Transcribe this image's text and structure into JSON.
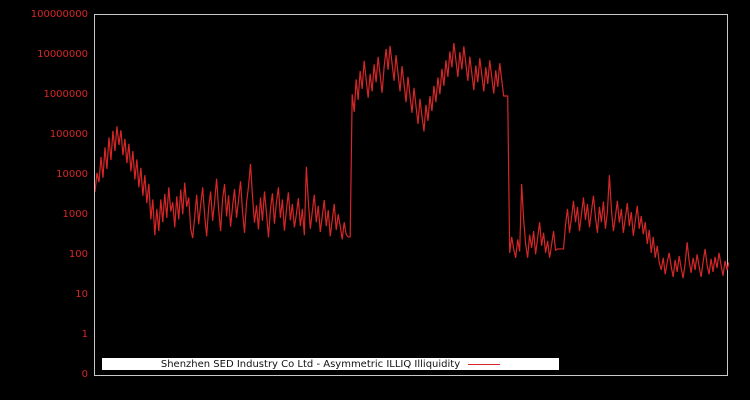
{
  "chart_data": {
    "type": "line",
    "title": "",
    "grid": false,
    "background_color": "#000000",
    "frame_color": "#c9c9c9",
    "legend": {
      "label": "Shenzhen SED Industry Co Ltd - Asymmetric ILLIQ Illiquidity",
      "position": "lower center",
      "background": "#ffffff",
      "text_color": "#111111"
    },
    "x_axis": {
      "label": "",
      "tick_labels": [],
      "note": "time axis, no visible tick labels"
    },
    "y_axis": {
      "label": "",
      "scale": "symlog",
      "tick_labels": [
        "100000000",
        "10000000",
        "1000000",
        "100000",
        "10000",
        "1000",
        "100",
        "10",
        "1",
        "0"
      ],
      "tick_values": [
        100000000,
        10000000,
        1000000,
        100000,
        10000,
        1000,
        100,
        10,
        1,
        0
      ],
      "tick_color": "#d62728"
    },
    "ylim": [
      0,
      100000000
    ],
    "series": [
      {
        "name": "Shenzhen SED Industry Co Ltd - Asymmetric ILLIQ Illiquidity",
        "color": "#d62728",
        "line_width": 1.2,
        "values": [
          4000,
          12000,
          7000,
          30000,
          9000,
          52000,
          15000,
          92000,
          25000,
          135000,
          42000,
          175000,
          60000,
          140000,
          33000,
          85000,
          21000,
          64000,
          13000,
          42000,
          8200,
          26000,
          5200,
          16000,
          3200,
          10500,
          2100,
          6400,
          820,
          2600,
          330,
          1500,
          420,
          2600,
          700,
          3600,
          900,
          5200,
          1300,
          2200,
          520,
          3100,
          820,
          4600,
          1100,
          6800,
          1700,
          2900,
          480,
          280,
          950,
          3400,
          620,
          1900,
          5200,
          1050,
          310,
          1600,
          4100,
          760,
          2300,
          8600,
          1500,
          420,
          2700,
          6300,
          980,
          3300,
          540,
          1750,
          4700,
          900,
          2500,
          7400,
          1300,
          380,
          2100,
          5600,
          20000,
          3100,
          680,
          1850,
          460,
          2900,
          760,
          4100,
          1200,
          290,
          1500,
          3700,
          640,
          2200,
          5200,
          900,
          2600,
          430,
          1400,
          3900,
          780,
          2000,
          520,
          1100,
          2800,
          560,
          1500,
          330,
          17000,
          2300,
          480,
          1300,
          3400,
          700,
          1800,
          400,
          1000,
          2500,
          560,
          1400,
          310,
          800,
          2000,
          450,
          1100,
          560,
          260,
          700,
          340,
          300,
          300,
          1100000,
          400000,
          2600000,
          800000,
          4200000,
          1500000,
          7500000,
          2600000,
          900000,
          3600000,
          1300000,
          6200000,
          2200000,
          9500000,
          3400000,
          1200000,
          5200000,
          15000000,
          4500000,
          18000000,
          6500000,
          2400000,
          10500000,
          3600000,
          1300000,
          5600000,
          2000000,
          700000,
          3000000,
          1000000,
          380000,
          1600000,
          560000,
          200000,
          850000,
          310000,
          130000,
          600000,
          240000,
          1000000,
          420000,
          1800000,
          700000,
          2900000,
          1100000,
          4800000,
          1800000,
          7800000,
          3000000,
          13000000,
          5200000,
          21000000,
          8000000,
          3000000,
          12500000,
          4600000,
          17500000,
          6400000,
          2400000,
          9600000,
          3700000,
          1400000,
          5800000,
          2200000,
          8800000,
          3400000,
          1300000,
          5200000,
          2000000,
          7800000,
          3000000,
          1150000,
          4400000,
          1700000,
          6600000,
          2500000,
          1000000,
          1000000,
          1000000,
          120,
          300,
          150,
          90,
          260,
          130,
          6300,
          800,
          200,
          90,
          340,
          160,
          420,
          110,
          280,
          700,
          180,
          380,
          120,
          240,
          90,
          190,
          420,
          140,
          150,
          150,
          150,
          150,
          600,
          1500,
          380,
          900,
          2400,
          700,
          1700,
          420,
          1100,
          2900,
          800,
          2000,
          520,
          1300,
          3200,
          950,
          380,
          1700,
          700,
          2300,
          480,
          1250,
          10500,
          1500,
          420,
          950,
          2400,
          680,
          1500,
          380,
          880,
          2100,
          560,
          1250,
          320,
          760,
          1800,
          480,
          1000,
          350,
          700,
          200,
          450,
          120,
          300,
          90,
          180,
          70,
          45,
          90,
          35,
          70,
          120,
          55,
          30,
          80,
          40,
          100,
          50,
          28,
          65,
          220,
          75,
          38,
          90,
          45,
          110,
          55,
          30,
          70,
          150,
          60,
          35,
          85,
          40,
          95,
          50,
          120,
          60,
          32,
          75,
          45,
          70
        ]
      }
    ]
  }
}
